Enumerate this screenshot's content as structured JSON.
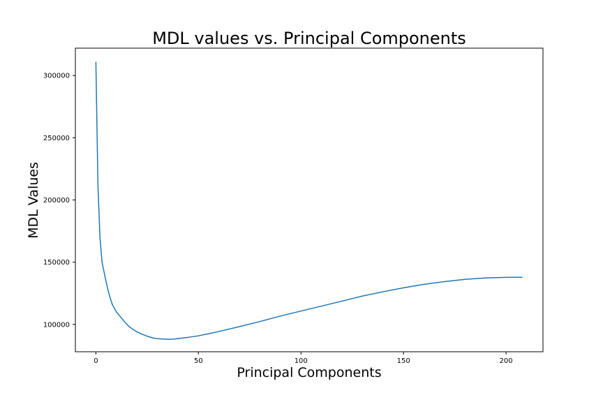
{
  "chart_data": {
    "type": "line",
    "title": "MDL values vs. Principal Components",
    "xlabel": "Principal Components",
    "ylabel": "MDL Values",
    "xlim": [
      -10,
      218
    ],
    "ylim": [
      78000,
      322000
    ],
    "xticks": [
      0,
      50,
      100,
      150,
      200
    ],
    "yticks": [
      100000,
      150000,
      200000,
      250000,
      300000
    ],
    "grid": false,
    "line_color": "#1f77b4",
    "series": [
      {
        "x": [
          0,
          1,
          2,
          3,
          4,
          5,
          6,
          7,
          8,
          9,
          10,
          12,
          14,
          16,
          18,
          20,
          22,
          25,
          28,
          30,
          33,
          35,
          38,
          40,
          45,
          50,
          55,
          60,
          70,
          80,
          90,
          100,
          110,
          120,
          130,
          140,
          150,
          160,
          170,
          180,
          190,
          200,
          208
        ],
        "y": [
          311000,
          212000,
          170000,
          150000,
          142000,
          134000,
          127000,
          121000,
          116000,
          113000,
          110000,
          106000,
          102000,
          98500,
          96000,
          94000,
          92500,
          90500,
          89000,
          88500,
          88200,
          88000,
          88200,
          88600,
          89600,
          90800,
          92500,
          94300,
          98200,
          102300,
          106700,
          110700,
          114700,
          118700,
          122800,
          126200,
          129400,
          132200,
          134400,
          136200,
          137300,
          137800,
          137900
        ]
      }
    ]
  }
}
